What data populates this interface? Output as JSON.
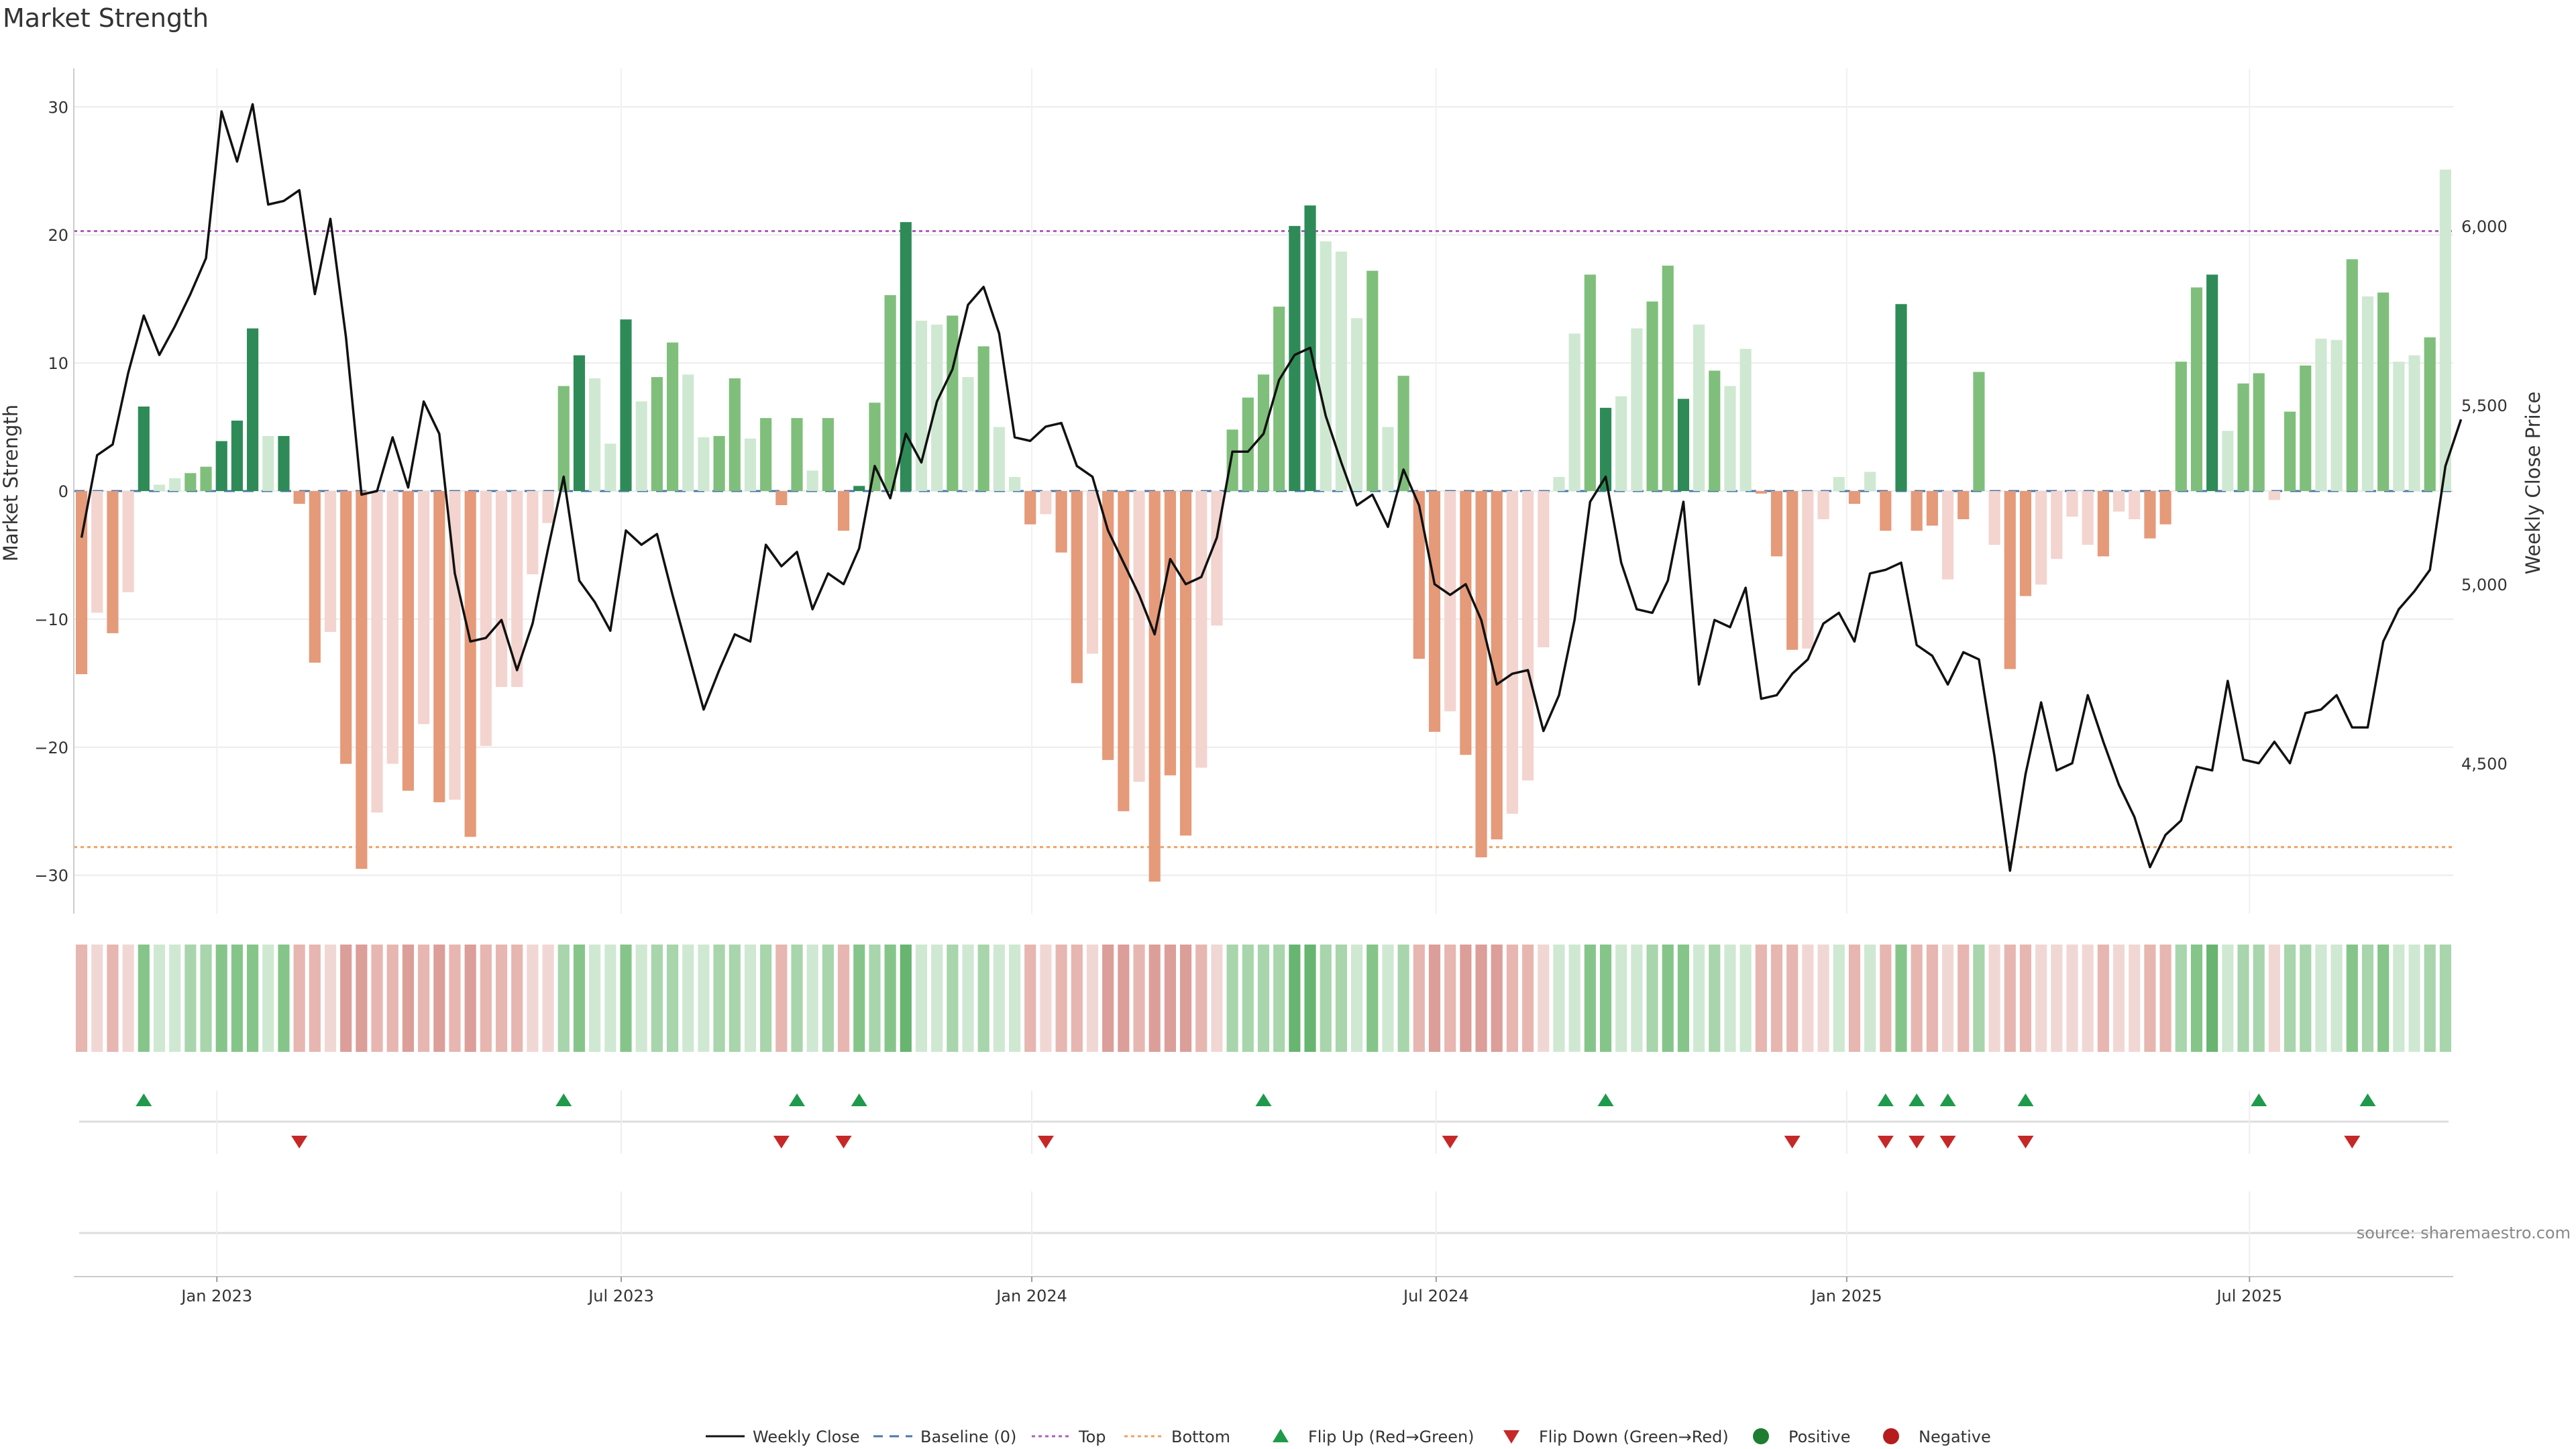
{
  "chart_data": {
    "type": "bar",
    "title": "Market Strength",
    "ylabel": "Market Strength",
    "y2label": "Weekly Close Price",
    "ylim": [
      -33,
      33
    ],
    "y2lim": [
      4080,
      6440
    ],
    "yticks": [
      30,
      20,
      10,
      0,
      -10,
      -20,
      -30
    ],
    "yticklabels": [
      "30",
      "20",
      "10",
      "0",
      "−10",
      "−20",
      "−30"
    ],
    "y2ticks": [
      6000,
      5500,
      5000,
      4500
    ],
    "y2ticklabels": [
      "6,000",
      "5,500",
      "5,000",
      "4,500"
    ],
    "x_ticks": [
      {
        "label": "Jan 2023",
        "week": 8.7
      },
      {
        "label": "Jul 2023",
        "week": 34.7
      },
      {
        "label": "Jan 2024",
        "week": 61.1
      },
      {
        "label": "Jul 2024",
        "week": 87.1
      },
      {
        "label": "Jan 2025",
        "week": 113.5
      },
      {
        "label": "Jul 2025",
        "week": 139.4
      }
    ],
    "top_line": 20.3,
    "bottom_line": -27.8,
    "strength": [
      -14.3,
      -9.5,
      -11.1,
      -7.9,
      6.6,
      0.5,
      1.0,
      1.4,
      1.9,
      3.9,
      5.5,
      12.7,
      4.3,
      4.3,
      -1.0,
      -13.4,
      -11.0,
      -21.3,
      -29.5,
      -25.1,
      -21.3,
      -23.4,
      -18.2,
      -24.3,
      -24.1,
      -27.0,
      -19.9,
      -15.3,
      -15.3,
      -6.5,
      -2.5,
      8.2,
      10.6,
      8.8,
      3.7,
      13.4,
      7.0,
      8.9,
      11.6,
      9.1,
      4.2,
      4.3,
      8.8,
      4.1,
      5.7,
      -1.1,
      5.7,
      1.6,
      5.7,
      -3.1,
      0.4,
      6.9,
      15.3,
      21.0,
      13.3,
      13.0,
      13.7,
      8.9,
      11.3,
      5.0,
      1.1,
      -2.6,
      -1.8,
      -4.8,
      -15.0,
      -12.7,
      -21.0,
      -25.0,
      -22.7,
      -30.5,
      -22.2,
      -26.9,
      -21.6,
      -10.5,
      4.8,
      7.3,
      9.1,
      14.4,
      20.7,
      22.3,
      19.5,
      18.7,
      13.5,
      17.2,
      5.0,
      9.0,
      -13.1,
      -18.8,
      -17.2,
      -20.6,
      -28.6,
      -27.2,
      -25.2,
      -22.6,
      -12.2,
      1.1,
      12.3,
      16.9,
      6.5,
      7.4,
      12.7,
      14.8,
      17.6,
      7.2,
      13.0,
      9.4,
      8.2,
      11.1,
      -0.2,
      -5.1,
      -12.4,
      -12.3,
      -2.2,
      1.1,
      -1.0,
      1.5,
      -3.1,
      14.6,
      -3.1,
      -2.7,
      -6.9,
      -2.2,
      9.3,
      -4.2,
      -13.9,
      -8.2,
      -7.3,
      -5.3,
      -2.0,
      -4.2,
      -5.1,
      -1.6,
      -2.2,
      -3.7,
      -2.6,
      10.1,
      15.9,
      16.9,
      4.7,
      8.4,
      9.2,
      -0.7,
      6.2,
      9.8,
      11.9,
      11.8,
      18.1,
      15.2,
      15.5,
      10.1,
      10.6,
      12.0,
      25.1
    ],
    "shades": [
      2,
      1,
      2,
      1,
      3,
      1,
      1,
      2,
      2,
      3,
      3,
      3,
      1,
      3,
      2,
      2,
      1,
      2,
      2,
      1,
      1,
      2,
      1,
      2,
      1,
      2,
      1,
      1,
      1,
      1,
      1,
      2,
      3,
      1,
      1,
      3,
      1,
      2,
      2,
      1,
      1,
      2,
      2,
      1,
      2,
      2,
      2,
      1,
      2,
      2,
      3,
      2,
      2,
      3,
      1,
      1,
      2,
      1,
      2,
      1,
      1,
      2,
      1,
      2,
      2,
      1,
      2,
      2,
      1,
      2,
      2,
      2,
      1,
      1,
      2,
      2,
      2,
      2,
      3,
      3,
      1,
      1,
      1,
      2,
      1,
      2,
      2,
      2,
      1,
      2,
      2,
      2,
      1,
      1,
      1,
      1,
      1,
      2,
      3,
      1,
      1,
      2,
      2,
      3,
      1,
      2,
      1,
      1,
      2,
      2,
      2,
      1,
      1,
      1,
      2,
      1,
      2,
      3,
      2,
      2,
      1,
      2,
      2,
      1,
      2,
      2,
      1,
      1,
      1,
      1,
      2,
      1,
      1,
      2,
      2,
      2,
      2,
      3,
      1,
      2,
      2,
      1,
      2,
      2,
      1,
      1,
      2,
      1,
      2,
      1,
      1,
      2
    ],
    "price": [
      5130,
      5360,
      5390,
      5590,
      5750,
      5640,
      5720,
      5810,
      5910,
      6320,
      6180,
      6340,
      6060,
      6070,
      6100,
      5810,
      6020,
      5690,
      5250,
      5260,
      5410,
      5270,
      5510,
      5420,
      5030,
      4840,
      4850,
      4900,
      4760,
      4890,
      5100,
      5300,
      5010,
      4950,
      4870,
      5150,
      5110,
      5140,
      4970,
      4810,
      4650,
      4760,
      4860,
      4840,
      5110,
      5050,
      5090,
      4930,
      5030,
      5000,
      5100,
      5330,
      5240,
      5420,
      5340,
      5510,
      5600,
      5780,
      5830,
      5700,
      5410,
      5400,
      5440,
      5450,
      5330,
      5300,
      5150,
      5060,
      4970,
      4860,
      5070,
      5000,
      5020,
      5130,
      5370,
      5370,
      5420,
      5570,
      5640,
      5660,
      5470,
      5340,
      5220,
      5250,
      5160,
      5320,
      5220,
      5000,
      4970,
      5000,
      4900,
      4720,
      4750,
      4760,
      4590,
      4690,
      4900,
      5230,
      5300,
      5060,
      4930,
      4920,
      5010,
      5230,
      4720,
      4900,
      4880,
      4990,
      4680,
      4690,
      4750,
      4790,
      4890,
      4920,
      4840,
      5030,
      5040,
      5060,
      4830,
      4800,
      4720,
      4810,
      4790,
      4520,
      4200,
      4470,
      4670,
      4480,
      4500,
      4690,
      4560,
      4440,
      4350,
      4210,
      4300,
      4340,
      4490,
      4480,
      4730,
      4510,
      4500,
      4560,
      4500,
      4640,
      4650,
      4690,
      4600,
      4600,
      4840,
      4930,
      4980,
      5040,
      5330,
      5460
    ],
    "flip_up": [
      4,
      31,
      46,
      50,
      76,
      98,
      116,
      118,
      120,
      125,
      140,
      147
    ],
    "flip_down": [
      14,
      45,
      49,
      62,
      88,
      110,
      116,
      118,
      120,
      125,
      146
    ],
    "legend": [
      "Weekly Close",
      "Baseline (0)",
      "Top",
      "Bottom",
      "Flip Up (Red→Green)",
      "Flip Down (Green→Red)",
      "Positive",
      "Negative"
    ],
    "source": "source: sharemaestro.com"
  }
}
